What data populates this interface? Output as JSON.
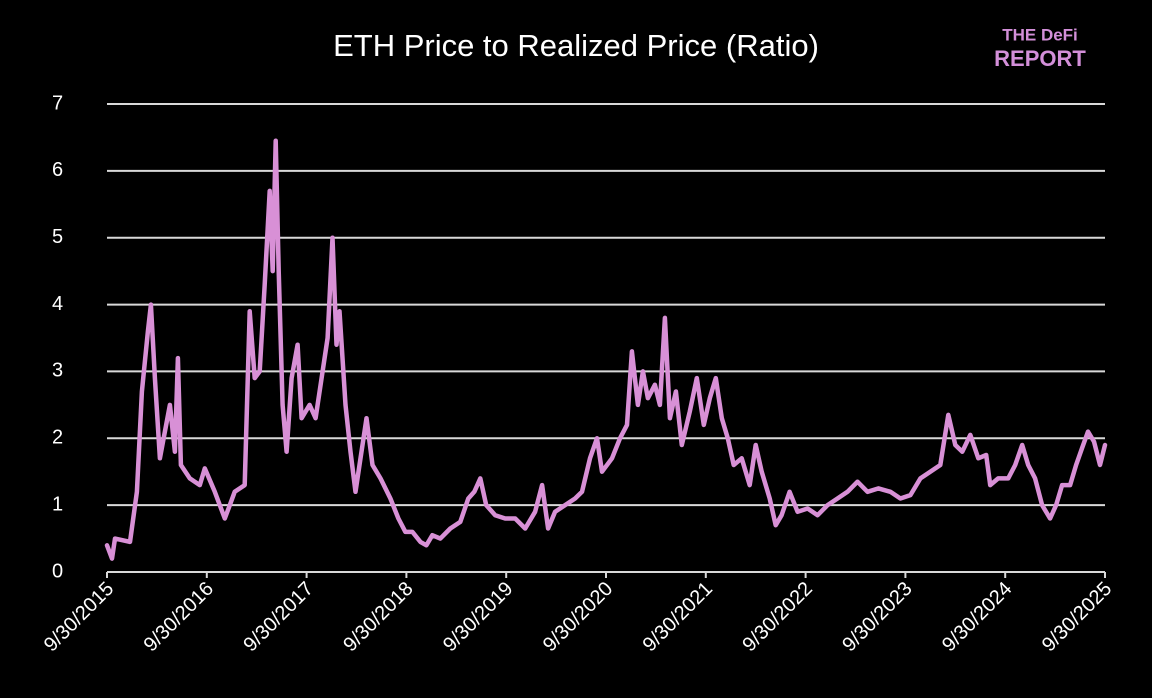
{
  "logo": {
    "line1": "THE DeFi",
    "line2": "REPORT"
  },
  "chart_data": {
    "type": "line",
    "title": "ETH Price to Realized Price (Ratio)",
    "xlim": [
      2015.75,
      2025.75
    ],
    "xticks": [
      {
        "value": 2015.75,
        "label": "9/30/2015"
      },
      {
        "value": 2016.75,
        "label": "9/30/2016"
      },
      {
        "value": 2017.75,
        "label": "9/30/2017"
      },
      {
        "value": 2018.75,
        "label": "9/30/2018"
      },
      {
        "value": 2019.75,
        "label": "9/30/2019"
      },
      {
        "value": 2020.75,
        "label": "9/30/2020"
      },
      {
        "value": 2021.75,
        "label": "9/30/2021"
      },
      {
        "value": 2022.75,
        "label": "9/30/2022"
      },
      {
        "value": 2023.75,
        "label": "9/30/2023"
      },
      {
        "value": 2024.75,
        "label": "9/30/2024"
      },
      {
        "value": 2025.75,
        "label": "9/30/2025"
      }
    ],
    "ylim": [
      0,
      7
    ],
    "yticks": [
      0,
      1,
      2,
      3,
      4,
      5,
      6,
      7
    ],
    "grid": true,
    "x": [
      2015.75,
      2015.8,
      2015.83,
      2015.98,
      2016.05,
      2016.1,
      2016.16,
      2016.19,
      2016.23,
      2016.28,
      2016.33,
      2016.38,
      2016.43,
      2016.46,
      2016.49,
      2016.58,
      2016.68,
      2016.73,
      2016.83,
      2016.93,
      2016.98,
      2017.03,
      2017.13,
      2017.18,
      2017.23,
      2017.28,
      2017.33,
      2017.38,
      2017.41,
      2017.44,
      2017.47,
      2017.51,
      2017.55,
      2017.6,
      2017.66,
      2017.7,
      2017.78,
      2017.84,
      2017.9,
      2017.96,
      2018.01,
      2018.05,
      2018.08,
      2018.14,
      2018.19,
      2018.24,
      2018.29,
      2018.35,
      2018.41,
      2018.49,
      2018.59,
      2018.67,
      2018.74,
      2018.81,
      2018.89,
      2018.95,
      2019.01,
      2019.09,
      2019.19,
      2019.29,
      2019.37,
      2019.43,
      2019.49,
      2019.55,
      2019.64,
      2019.74,
      2019.84,
      2019.94,
      2020.04,
      2020.11,
      2020.17,
      2020.24,
      2020.34,
      2020.44,
      2020.51,
      2020.59,
      2020.66,
      2020.71,
      2020.81,
      2020.89,
      2020.96,
      2021.01,
      2021.07,
      2021.12,
      2021.17,
      2021.24,
      2021.29,
      2021.34,
      2021.39,
      2021.45,
      2021.51,
      2021.59,
      2021.66,
      2021.73,
      2021.79,
      2021.85,
      2021.91,
      2021.97,
      2022.03,
      2022.11,
      2022.19,
      2022.25,
      2022.31,
      2022.39,
      2022.45,
      2022.51,
      2022.59,
      2022.67,
      2022.77,
      2022.87,
      2022.97,
      2023.07,
      2023.17,
      2023.27,
      2023.37,
      2023.48,
      2023.6,
      2023.7,
      2023.8,
      2023.9,
      2024.0,
      2024.1,
      2024.18,
      2024.25,
      2024.32,
      2024.4,
      2024.48,
      2024.56,
      2024.6,
      2024.68,
      2024.78,
      2024.85,
      2024.92,
      2024.98,
      2025.05,
      2025.12,
      2025.2,
      2025.26,
      2025.32,
      2025.4,
      2025.46,
      2025.52,
      2025.58,
      2025.64,
      2025.7,
      2025.75
    ],
    "series": [
      {
        "color": "#d890d6",
        "values": [
          0.4,
          0.2,
          0.5,
          0.45,
          1.2,
          2.7,
          3.6,
          4.0,
          2.9,
          1.7,
          2.1,
          2.5,
          1.8,
          3.2,
          1.6,
          1.4,
          1.3,
          1.55,
          1.2,
          0.8,
          1.0,
          1.2,
          1.3,
          3.9,
          2.9,
          3.0,
          4.3,
          5.7,
          4.5,
          6.45,
          4.5,
          2.5,
          1.8,
          2.9,
          3.4,
          2.3,
          2.5,
          2.3,
          2.9,
          3.5,
          5.0,
          3.4,
          3.9,
          2.5,
          1.8,
          1.2,
          1.7,
          2.3,
          1.6,
          1.4,
          1.1,
          0.8,
          0.6,
          0.6,
          0.45,
          0.4,
          0.55,
          0.5,
          0.65,
          0.75,
          1.1,
          1.2,
          1.4,
          1.0,
          0.85,
          0.8,
          0.8,
          0.65,
          0.9,
          1.3,
          0.65,
          0.9,
          1.0,
          1.1,
          1.2,
          1.7,
          2.0,
          1.5,
          1.7,
          2.0,
          2.2,
          3.3,
          2.5,
          3.0,
          2.6,
          2.8,
          2.5,
          3.8,
          2.3,
          2.7,
          1.9,
          2.4,
          2.9,
          2.2,
          2.6,
          2.9,
          2.3,
          2.0,
          1.6,
          1.7,
          1.3,
          1.9,
          1.5,
          1.1,
          0.7,
          0.85,
          1.2,
          0.9,
          0.95,
          0.85,
          1.0,
          1.1,
          1.2,
          1.35,
          1.2,
          1.25,
          1.2,
          1.1,
          1.15,
          1.4,
          1.5,
          1.6,
          2.35,
          1.9,
          1.8,
          2.05,
          1.7,
          1.75,
          1.3,
          1.4,
          1.4,
          1.6,
          1.9,
          1.6,
          1.4,
          1.0,
          0.8,
          1.0,
          1.3,
          1.3,
          1.6,
          1.85,
          2.1,
          1.95,
          1.6,
          1.9
        ]
      }
    ]
  }
}
